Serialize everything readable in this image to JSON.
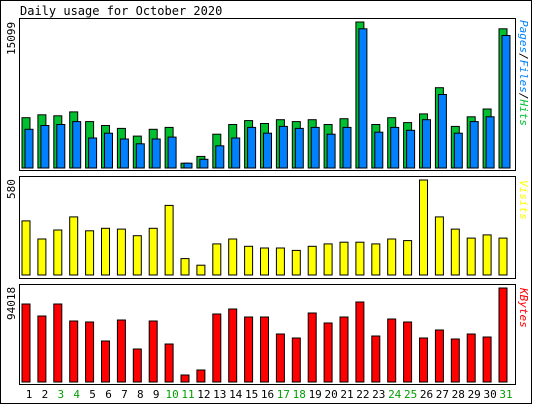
{
  "colors": {
    "hits": "#00c030",
    "files": "#0080ff",
    "visits": "#ffff00",
    "kbytes": "#ff0000",
    "frame": "#000000",
    "bg": "#ffffff",
    "weekend_day": "#00a000",
    "weekday_day": "#000000"
  },
  "chart_data": [
    {
      "type": "bar",
      "title": "Daily usage for October 2020",
      "ylabel": "Pages/Files/Hits",
      "ylabel_parts": [
        "Pages",
        "/",
        "Files",
        "/",
        "Hits"
      ],
      "ymax_label": "15099",
      "ylim": [
        0,
        15099
      ],
      "grid": false,
      "categories": [
        "1",
        "2",
        "3",
        "4",
        "5",
        "6",
        "7",
        "8",
        "9",
        "10",
        "11",
        "12",
        "13",
        "14",
        "15",
        "16",
        "17",
        "18",
        "19",
        "20",
        "21",
        "22",
        "23",
        "24",
        "25",
        "26",
        "27",
        "28",
        "29",
        "30",
        "31"
      ],
      "series": [
        {
          "name": "Hits",
          "values": [
            5200,
            5500,
            5400,
            5800,
            4800,
            4400,
            4100,
            3300,
            4000,
            4200,
            500,
            1200,
            3500,
            4500,
            4900,
            4600,
            5000,
            4800,
            5000,
            4500,
            5100,
            15099,
            4500,
            5200,
            4700,
            5600,
            8300,
            4300,
            5300,
            6100,
            14400
          ]
        },
        {
          "name": "Files",
          "values": [
            4000,
            4400,
            4500,
            4800,
            3100,
            3600,
            3000,
            2500,
            3000,
            3200,
            500,
            900,
            2300,
            3100,
            4200,
            3600,
            4300,
            4100,
            4200,
            3500,
            4200,
            14400,
            3700,
            4200,
            3900,
            5000,
            7600,
            3600,
            4800,
            5300,
            13700
          ]
        },
        {
          "name": "Pages",
          "values": [
            0,
            0,
            0,
            0,
            0,
            0,
            0,
            0,
            0,
            0,
            0,
            0,
            0,
            0,
            0,
            0,
            0,
            0,
            0,
            0,
            0,
            0,
            0,
            0,
            0,
            0,
            0,
            0,
            0,
            0,
            0
          ]
        }
      ],
      "weekend_days": [
        "3",
        "4",
        "10",
        "11",
        "17",
        "18",
        "24",
        "25",
        "31"
      ]
    },
    {
      "type": "bar",
      "ylabel": "Visits",
      "ymax_label": "580",
      "ylim": [
        0,
        580
      ],
      "grid": false,
      "series": [
        {
          "name": "Visits",
          "values": [
            330,
            220,
            275,
            355,
            270,
            285,
            280,
            240,
            285,
            425,
            100,
            60,
            190,
            220,
            175,
            165,
            165,
            150,
            175,
            190,
            200,
            200,
            190,
            220,
            210,
            580,
            355,
            280,
            225,
            245,
            225
          ]
        }
      ]
    },
    {
      "type": "bar",
      "ylabel": "KBytes",
      "ymax_label": "94018",
      "ylim": [
        0,
        94018
      ],
      "grid": false,
      "series": [
        {
          "name": "KBytes",
          "values": [
            78000,
            66000,
            78000,
            61000,
            60000,
            41000,
            62000,
            33000,
            61000,
            38000,
            7000,
            12000,
            68000,
            73000,
            65000,
            65000,
            48000,
            44000,
            69000,
            59000,
            65000,
            80000,
            46000,
            63000,
            60000,
            44000,
            52000,
            43000,
            48000,
            45000,
            94018
          ]
        }
      ]
    }
  ]
}
